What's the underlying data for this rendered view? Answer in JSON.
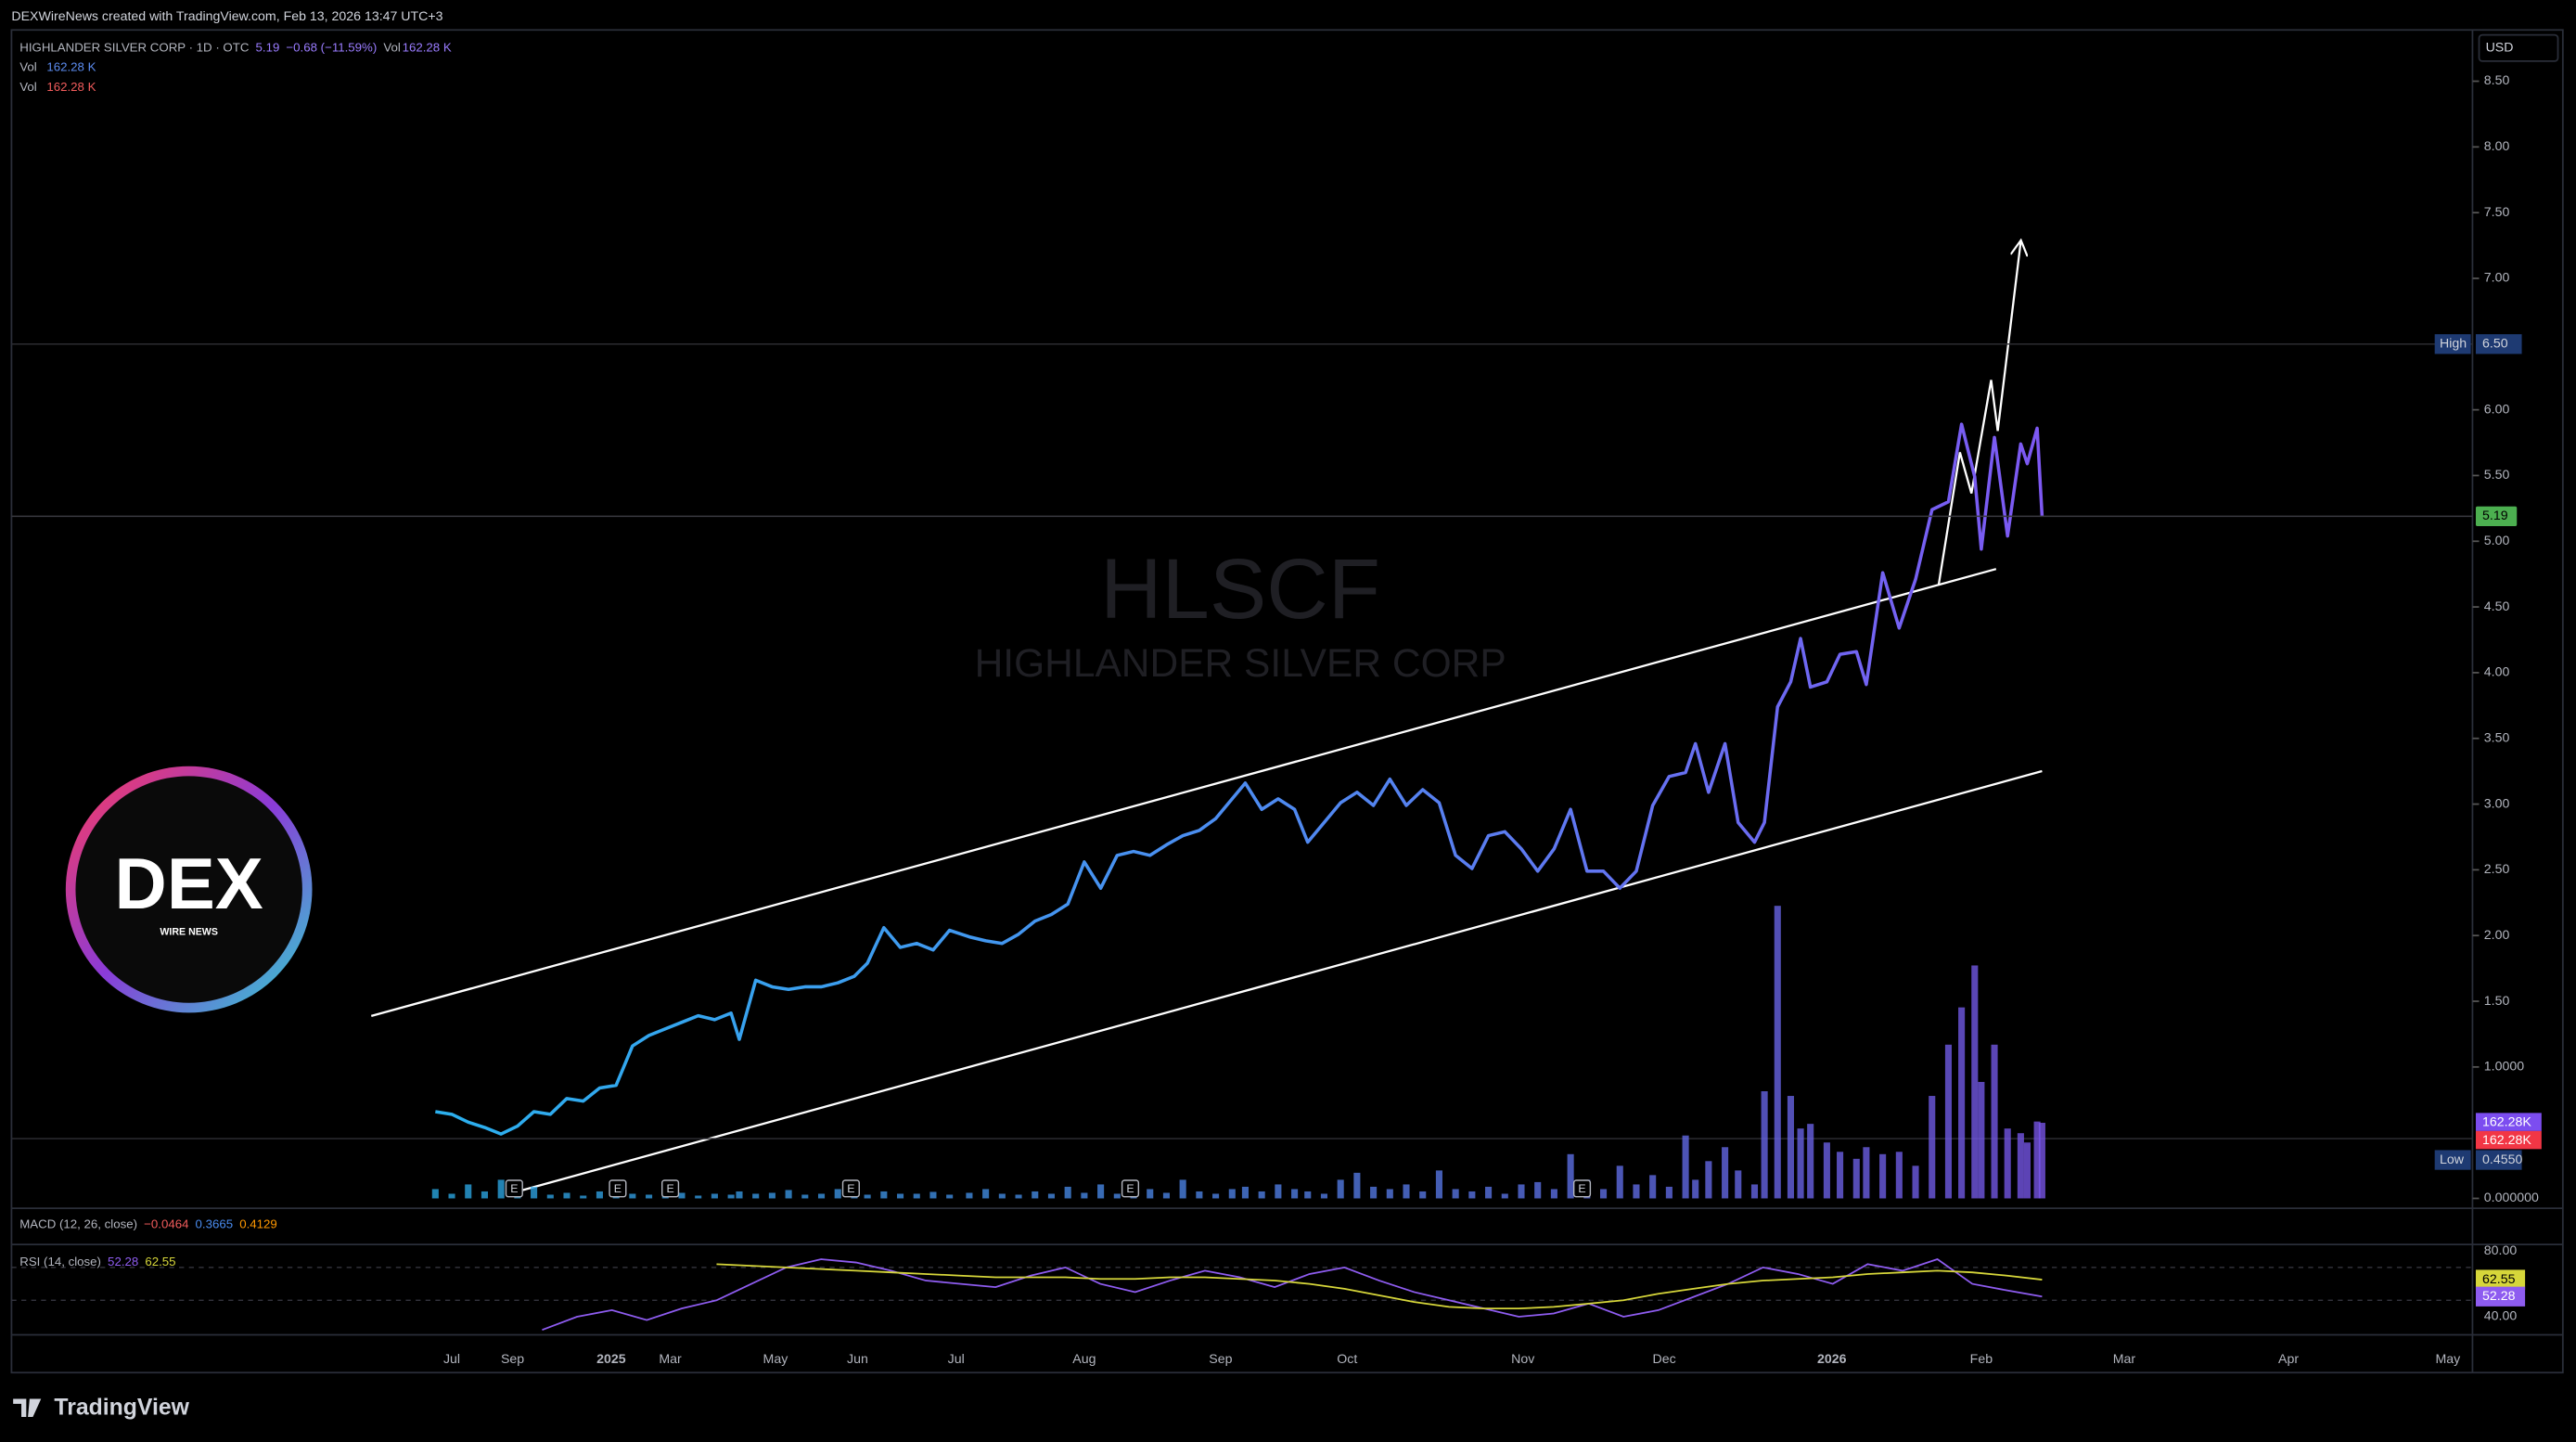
{
  "header": {
    "credit": "DEXWireNews created with TradingView.com, Feb 13, 2026 13:47 UTC+3"
  },
  "chart_data": {
    "type": "line",
    "title": "HIGHLANDER SILVER CORP · 1D · OTC",
    "change": "−0.68 (−11.59%)",
    "watermark": {
      "symbol": "HLSCF",
      "name": "HIGHLANDER SILVER CORP"
    },
    "currency": "USD",
    "x_labels": [
      "Jul",
      "Sep",
      "2025",
      "Mar",
      "May",
      "Jun",
      "Jul",
      "Aug",
      "Sep",
      "Oct",
      "Nov",
      "Dec",
      "2026",
      "Feb",
      "Mar",
      "Apr",
      "May"
    ],
    "ylim": [
      0,
      8.89
    ],
    "yticks": [
      {
        "value": 8.5,
        "label": "8.50"
      },
      {
        "value": 8,
        "label": "8.00"
      },
      {
        "value": 7.5,
        "label": "7.50"
      },
      {
        "value": 7,
        "label": "7.00"
      },
      {
        "value": 6,
        "label": "6.00"
      },
      {
        "value": 5.5,
        "label": "5.50"
      },
      {
        "value": 5,
        "label": "5.00"
      },
      {
        "value": 4.5,
        "label": "4.50"
      },
      {
        "value": 4,
        "label": "4.00"
      },
      {
        "value": 3.5,
        "label": "3.50"
      },
      {
        "value": 3,
        "label": "3.00"
      },
      {
        "value": 2.5,
        "label": "2.50"
      },
      {
        "value": 2,
        "label": "2.00"
      },
      {
        "value": 1.5,
        "label": "1.50"
      },
      {
        "value": 1,
        "label": "1.0000"
      },
      {
        "value": 0,
        "label": "0.000000"
      }
    ],
    "high": {
      "name": "High",
      "value": 6.5,
      "label": "6.50"
    },
    "low": {
      "name": "Low",
      "value": 0.455,
      "label": "0.4550"
    },
    "series": [
      {
        "name": "HLSCF",
        "color": "#2bb0ee",
        "color_end": "#7d58f2",
        "values": [
          0.66,
          0.64,
          0.58,
          0.54,
          0.49,
          0.55,
          0.66,
          0.64,
          0.76,
          0.74,
          0.84,
          0.86,
          1.16,
          1.24,
          1.29,
          1.34,
          1.39,
          1.36,
          1.41,
          1.21,
          1.66,
          1.61,
          1.59,
          1.61,
          1.61,
          1.64,
          1.69,
          1.79,
          2.06,
          1.91,
          1.94,
          1.89,
          2.04,
          1.99,
          1.96,
          1.94,
          2.01,
          2.11,
          2.16,
          2.24,
          2.56,
          2.36,
          2.61,
          2.64,
          2.61,
          2.69,
          2.76,
          2.8,
          2.89,
          3.04,
          3.16,
          2.96,
          3.04,
          2.96,
          2.71,
          2.86,
          3.01,
          3.09,
          2.99,
          3.19,
          2.99,
          3.11,
          3.01,
          2.61,
          2.51,
          2.76,
          2.79,
          2.66,
          2.49,
          2.66,
          2.96,
          2.49,
          2.49,
          2.36,
          2.49,
          2.99,
          3.21,
          3.24,
          3.46,
          3.09,
          3.46,
          2.86,
          2.71,
          2.86,
          3.74,
          3.93,
          4.26,
          3.89,
          3.93,
          4.14,
          4.16,
          3.91,
          4.76,
          4.34,
          4.71,
          5.24,
          5.3,
          5.89,
          5.49,
          4.94,
          5.79,
          5.04,
          5.74,
          5.59,
          5.86,
          5.19
        ]
      },
      {
        "name": "Vol",
        "axis": "y2",
        "color": "#2bb0ee",
        "color_end": "#7d58f2",
        "value_label": "162.28 K",
        "axis_label": "162.28K",
        "values": [
          20,
          10,
          30,
          15,
          40,
          10,
          25,
          8,
          12,
          6,
          15,
          30,
          10,
          8,
          20,
          12,
          6,
          10,
          8,
          15,
          10,
          12,
          18,
          8,
          10,
          20,
          12,
          8,
          15,
          10,
          10,
          14,
          8,
          12,
          20,
          10,
          8,
          15,
          10,
          25,
          12,
          30,
          10,
          15,
          20,
          12,
          40,
          15,
          10,
          20,
          25,
          15,
          30,
          20,
          15,
          10,
          40,
          55,
          25,
          20,
          30,
          15,
          60,
          20,
          15,
          25,
          10,
          30,
          35,
          20,
          95,
          40,
          20,
          70,
          30,
          50,
          25,
          135,
          40,
          80,
          110,
          60,
          30,
          230,
          628,
          220,
          150,
          160,
          120,
          100,
          85,
          110,
          95,
          100,
          70,
          220,
          330,
          410,
          500,
          250,
          330,
          150,
          140,
          120,
          165,
          162.28
        ]
      }
    ],
    "y2lim": [
      0,
      2508
    ],
    "events": [
      "E",
      "E",
      "E",
      "E",
      "E",
      "E"
    ],
    "macd": {
      "title": "MACD (12, 26, close)",
      "readouts": [
        "−0.0464",
        "0.3665",
        "0.4129"
      ]
    },
    "rsi": {
      "title": "RSI (14, close)",
      "color": "#8e5cf0",
      "ma_color": "#d6d63a",
      "ylim": [
        29,
        83
      ],
      "yticks": [
        {
          "value": 80,
          "label": "80.00"
        },
        {
          "value": 40,
          "label": "40.00"
        }
      ],
      "values": [
        32,
        40,
        44,
        38,
        45,
        50,
        60,
        70,
        75,
        73,
        68,
        62,
        60,
        58,
        65,
        70,
        60,
        55,
        62,
        68,
        64,
        58,
        66,
        70,
        62,
        55,
        50,
        45,
        40,
        42,
        48,
        40,
        44,
        52,
        60,
        70,
        66,
        60,
        72,
        68,
        75,
        60,
        56,
        52.28
      ],
      "ma_values": [
        null,
        null,
        null,
        null,
        null,
        72,
        71,
        70,
        69,
        68,
        67,
        66,
        65,
        64,
        64,
        64,
        63,
        63,
        64,
        64,
        63,
        62,
        60,
        57,
        53,
        49,
        46,
        45,
        45,
        46,
        48,
        50,
        54,
        57,
        60,
        62,
        63,
        64,
        66,
        67,
        68,
        67,
        65,
        62.55
      ]
    }
  },
  "logo": {
    "title": "DEX",
    "subtitle": "WIRE NEWS"
  },
  "footer": {
    "brand": "TradingView"
  }
}
